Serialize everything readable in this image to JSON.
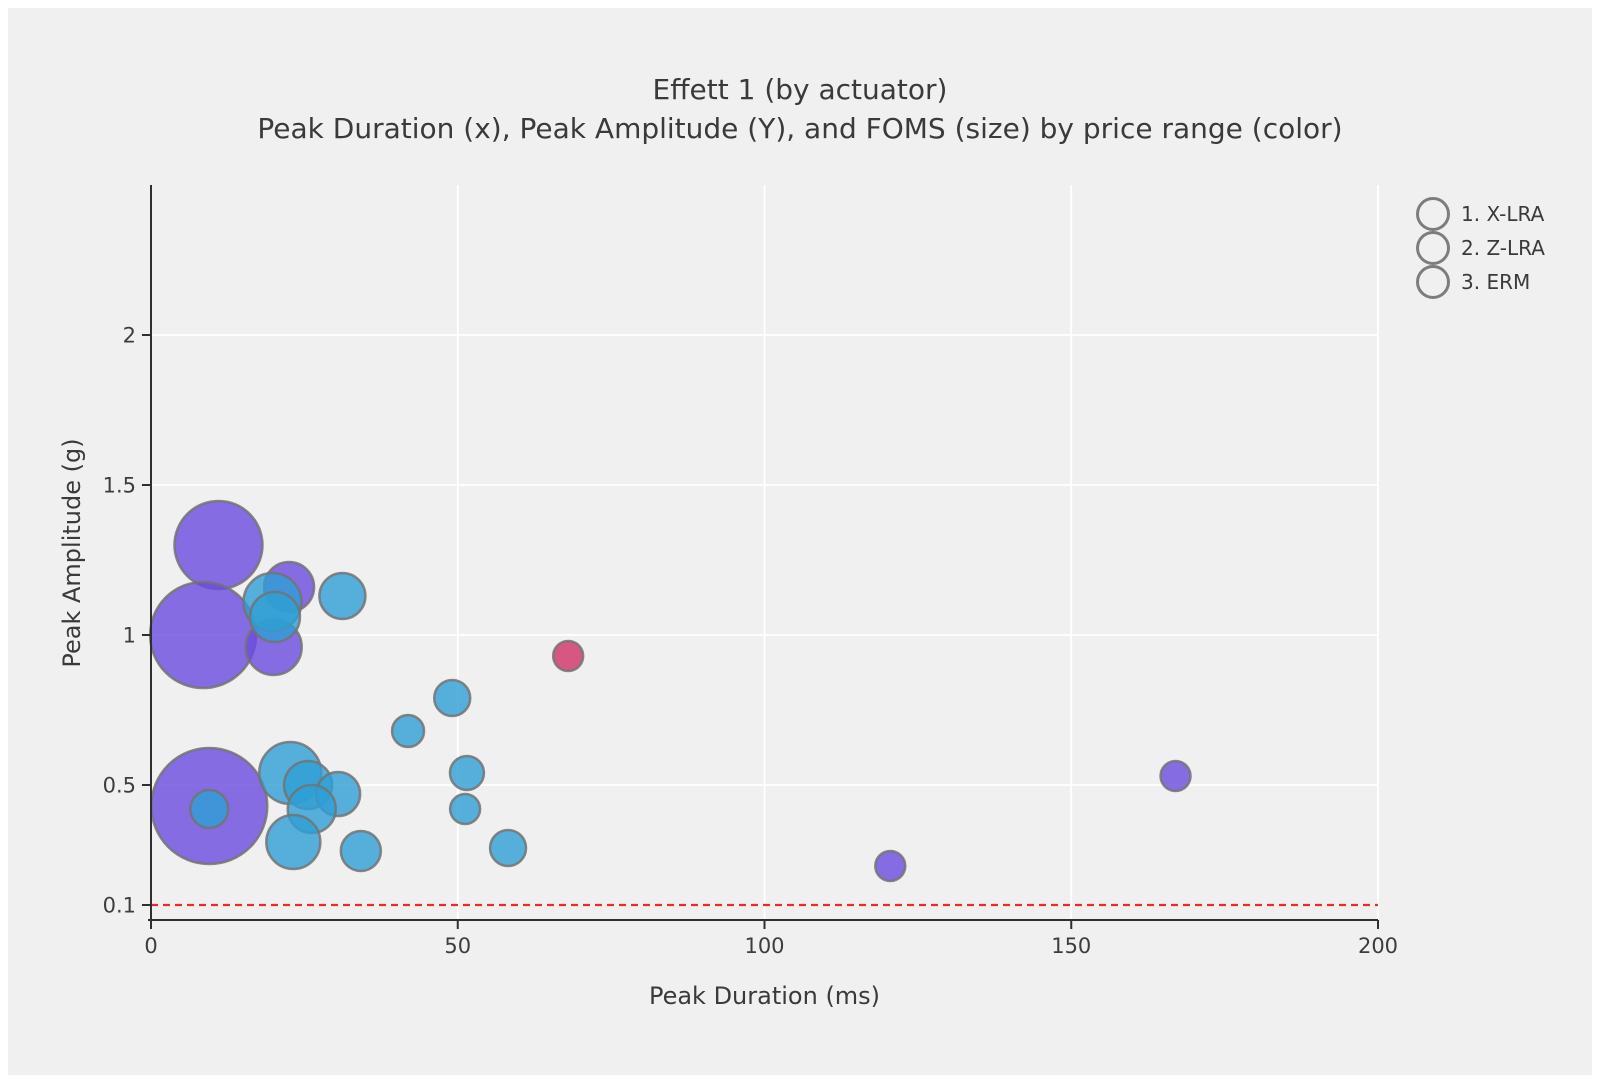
{
  "title": "Effett 1 (by actuator)",
  "subtitle": "Peak Duration (x), Peak Amplitude (Y), and FOMS (size) by price range (color)",
  "chart_data": {
    "type": "scatter",
    "variant": "bubble",
    "title": "Effett 1 (by actuator)",
    "subtitle": "Peak Duration (x), Peak Amplitude (Y), and FOMS (size) by price range (color)",
    "xlabel": "Peak Duration (ms)",
    "ylabel": "Peak Amplitude (g)",
    "xlim": [
      0,
      200
    ],
    "ylim": [
      0.05,
      2.5
    ],
    "x_ticks": [
      0,
      50,
      100,
      150,
      200
    ],
    "y_ticks": [
      2,
      1.5,
      1,
      0.5,
      0.1
    ],
    "grid": true,
    "grid_color": "#ffffff",
    "background_color": "#f0f0f1",
    "legend_position": "top-right",
    "bubble_stroke_color": "#737373",
    "bubble_fill_opacity": 0.8,
    "reference_line": {
      "y": 0.1,
      "color": "#e52b2b",
      "style": "dashed"
    },
    "size_legend": "FOMS (size)",
    "color_legend": "price range (color)",
    "series": [
      {
        "name": "1. X-LRA",
        "color": "#6a4be0",
        "points": [
          {
            "x": 11,
            "y": 1.3,
            "r": 44
          },
          {
            "x": 8.5,
            "y": 1.0,
            "r": 53
          },
          {
            "x": 22.5,
            "y": 1.16,
            "r": 25
          },
          {
            "x": 20,
            "y": 0.96,
            "r": 28
          },
          {
            "x": 9.5,
            "y": 0.43,
            "r": 58
          },
          {
            "x": 120.5,
            "y": 0.23,
            "r": 15
          },
          {
            "x": 167,
            "y": 0.53,
            "r": 15
          }
        ]
      },
      {
        "name": "2. Z-LRA",
        "color": "#2e9fd4",
        "points": [
          {
            "x": 19.8,
            "y": 1.11,
            "r": 29
          },
          {
            "x": 20.2,
            "y": 1.06,
            "r": 25
          },
          {
            "x": 31.2,
            "y": 1.13,
            "r": 23
          },
          {
            "x": 41.9,
            "y": 0.68,
            "r": 16
          },
          {
            "x": 49.1,
            "y": 0.79,
            "r": 18
          },
          {
            "x": 51.5,
            "y": 0.54,
            "r": 17
          },
          {
            "x": 51.2,
            "y": 0.42,
            "r": 15
          },
          {
            "x": 58.2,
            "y": 0.29,
            "r": 18
          },
          {
            "x": 9.5,
            "y": 0.42,
            "r": 19
          },
          {
            "x": 22.7,
            "y": 0.54,
            "r": 31
          },
          {
            "x": 25.6,
            "y": 0.5,
            "r": 24
          },
          {
            "x": 30.5,
            "y": 0.47,
            "r": 22
          },
          {
            "x": 26.2,
            "y": 0.42,
            "r": 24
          },
          {
            "x": 23.2,
            "y": 0.31,
            "r": 27
          },
          {
            "x": 34.2,
            "y": 0.28,
            "r": 20
          }
        ]
      },
      {
        "name": "3. ERM",
        "color": "#d03267",
        "points": [
          {
            "x": 68,
            "y": 0.93,
            "r": 15
          }
        ]
      }
    ]
  }
}
